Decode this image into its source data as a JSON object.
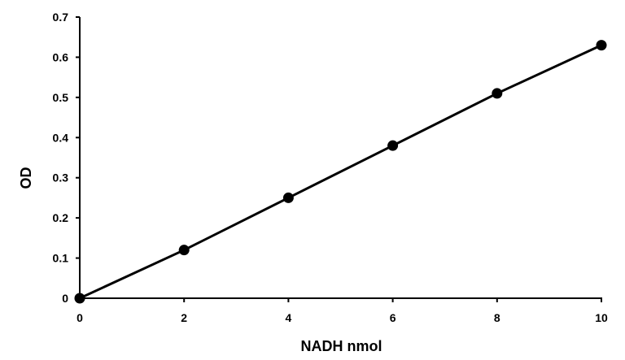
{
  "chart_data": {
    "type": "scatter",
    "title": "",
    "xlabel": "NADH nmol",
    "ylabel": "OD",
    "xlim": [
      0,
      10
    ],
    "ylim": [
      0,
      0.7
    ],
    "x_ticks": [
      "0",
      "2",
      "4",
      "6",
      "8",
      "10"
    ],
    "y_ticks": [
      "0",
      "0.1",
      "0.2",
      "0.3",
      "0.4",
      "0.5",
      "0.6",
      "0.7"
    ],
    "grid": false,
    "legend": "none",
    "series": [
      {
        "x": [
          0,
          2,
          4,
          6,
          8,
          10
        ],
        "y": [
          0,
          0.12,
          0.25,
          0.38,
          0.51,
          0.63
        ],
        "color": "#000000",
        "marker": "circle",
        "line": "straight"
      }
    ]
  }
}
